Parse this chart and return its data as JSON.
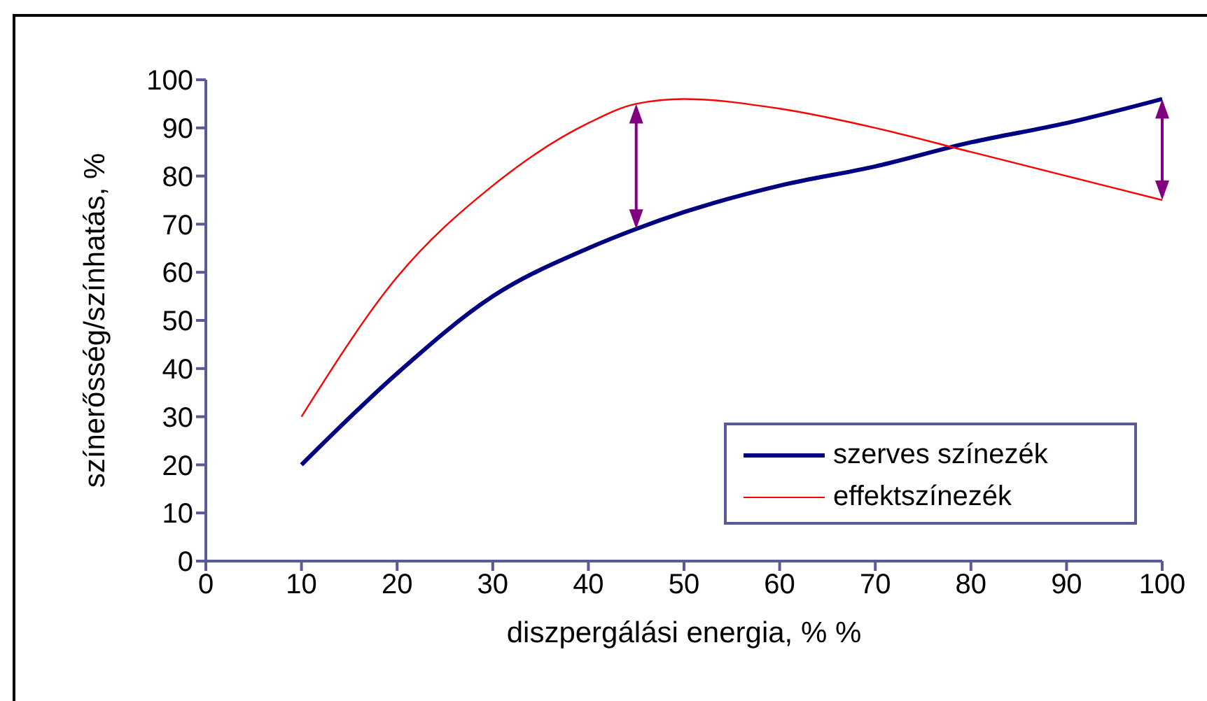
{
  "chart_data": {
    "type": "line",
    "xlabel": "diszpergálási energia, % %",
    "ylabel": "színerősség/színhatás, %",
    "x": [
      10,
      20,
      30,
      40,
      45,
      50,
      60,
      70,
      80,
      90,
      100
    ],
    "series": [
      {
        "name": "szerves színezék",
        "color": "#000080",
        "values": [
          20,
          39,
          55,
          65,
          69,
          72.5,
          78,
          82,
          87,
          91,
          96
        ]
      },
      {
        "name": "effektszínezék",
        "color": "#ff0000",
        "values": [
          30,
          59,
          78,
          91,
          95,
          96,
          94,
          90,
          85,
          80,
          75
        ]
      }
    ],
    "xlim": [
      0,
      100
    ],
    "xticks": [
      0,
      10,
      20,
      30,
      40,
      50,
      60,
      70,
      80,
      90,
      100
    ],
    "ylim": [
      0,
      100
    ],
    "yticks": [
      0,
      10,
      20,
      30,
      40,
      50,
      60,
      70,
      80,
      90,
      100
    ],
    "grid": false,
    "legend": "bottom right",
    "marker": "none",
    "line_style": "solid"
  }
}
